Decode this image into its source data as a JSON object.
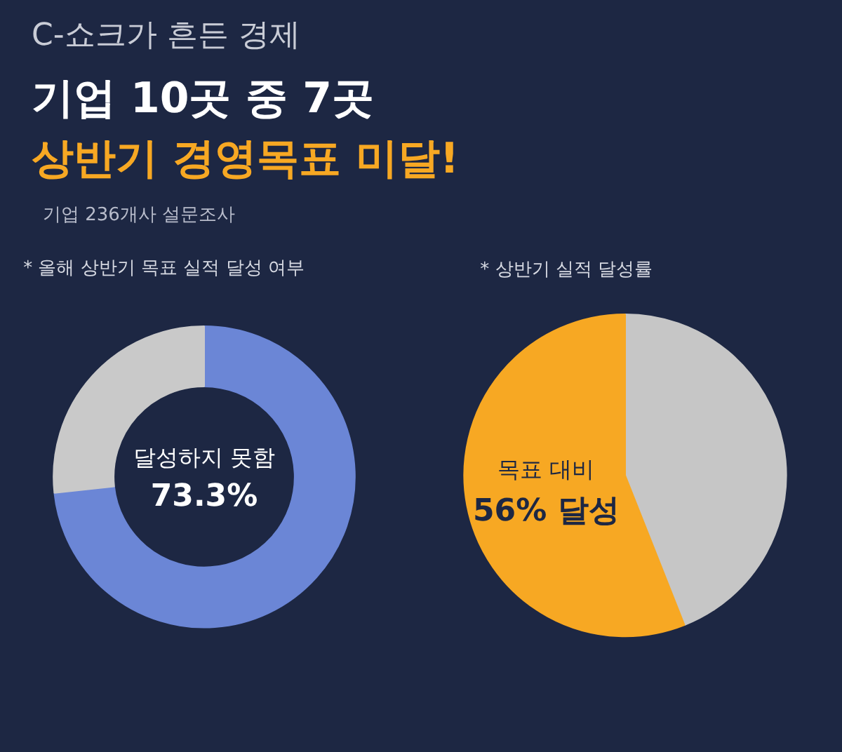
{
  "chart_data": [
    {
      "type": "other",
      "title": "기업 10곳 중 7곳",
      "subtitle": "상반기 경영목표 미달!",
      "annotations": [
        "C-쇼크가 흔든 경제",
        "기업 236개사 설문조사"
      ]
    },
    {
      "type": "donut",
      "title": "* 올해 상반기 목표 실적 달성 여부",
      "categories": [
        "달성하지 못함",
        null
      ],
      "values": [
        73.3,
        26.7
      ],
      "colors": [
        "#6b86d6",
        "#c9c9c9"
      ],
      "value_labels": [
        "73.3%",
        null
      ]
    },
    {
      "type": "pie",
      "title": "* 상반기 실적 달성률",
      "categories": [
        null,
        "목표 대비"
      ],
      "values": [
        44,
        56
      ],
      "colors": [
        "#c6c6c6",
        "#f7a823"
      ],
      "value_labels": [
        null,
        "56% 달성"
      ]
    }
  ]
}
